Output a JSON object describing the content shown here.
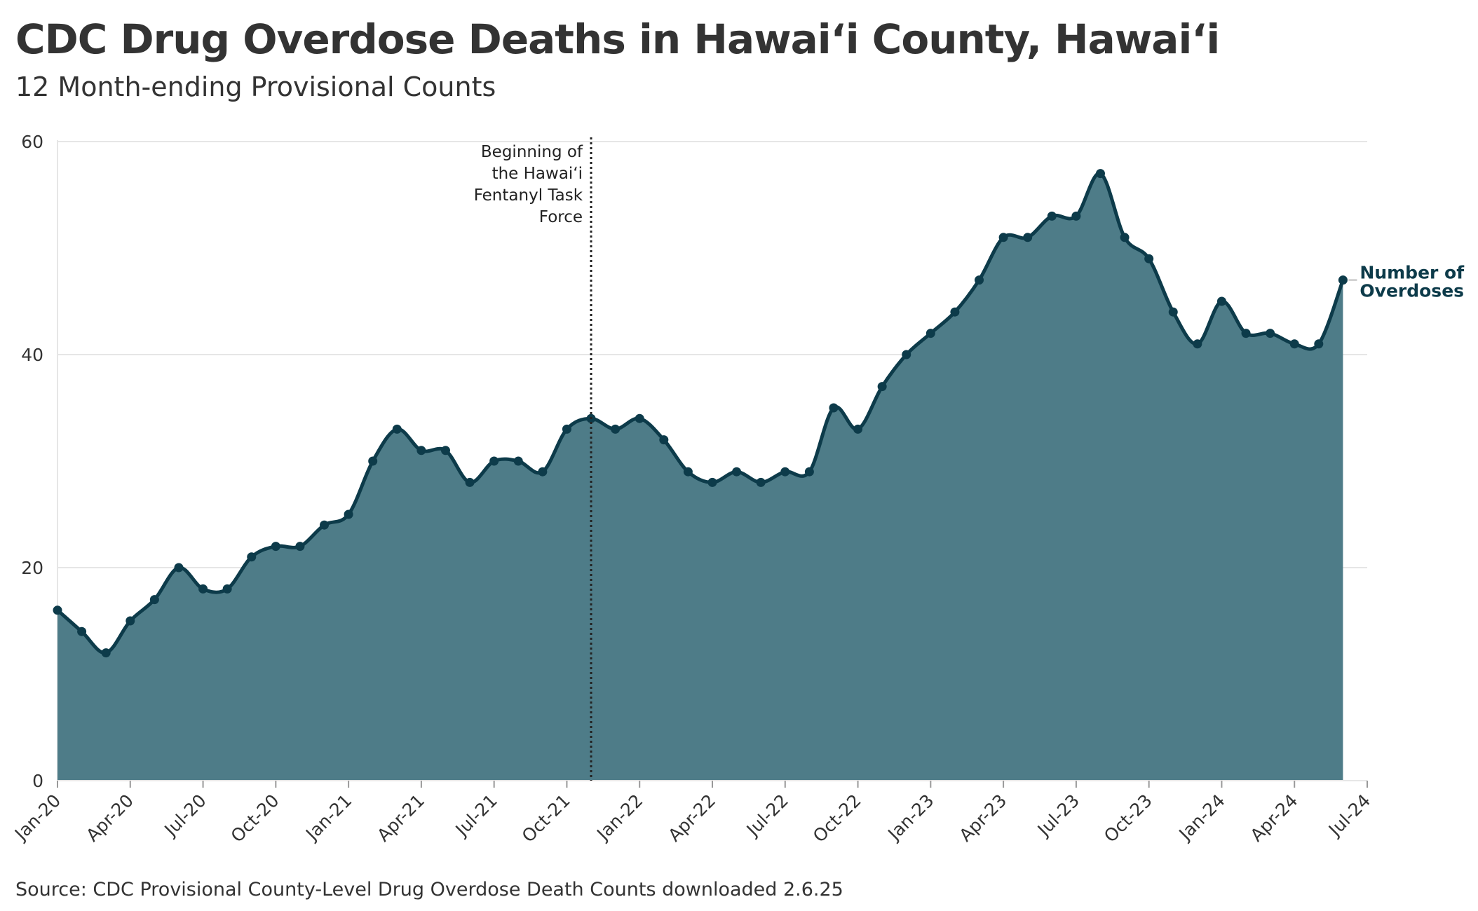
{
  "title": "CDC Drug Overdose Deaths in Hawaiʻi County, Hawaiʻi",
  "subtitle": "12 Month-ending Provisional Counts",
  "source": "Source: CDC Provisional County-Level Drug Overdose Death Counts downloaded 2.6.25",
  "colors": {
    "fill": "#4e7c88",
    "line": "#0d3b4a",
    "grid": "#e6e6e6",
    "text": "#333333"
  },
  "chart_data": {
    "type": "area",
    "title": "CDC Drug Overdose Deaths in Hawaiʻi County, Hawaiʻi",
    "subtitle": "12 Month-ending Provisional Counts",
    "xlabel": "",
    "ylabel": "",
    "ylim": [
      0,
      60
    ],
    "yticks": [
      0,
      20,
      40,
      60
    ],
    "grid": "horizontal",
    "x_tick_labels": [
      "Jan-20",
      "Apr-20",
      "Jul-20",
      "Oct-20",
      "Jan-21",
      "Apr-21",
      "Jul-21",
      "Oct-21",
      "Jan-22",
      "Apr-22",
      "Jul-22",
      "Oct-22",
      "Jan-23",
      "Apr-23",
      "Jul-23",
      "Oct-23",
      "Jan-24",
      "Apr-24",
      "Jul-24"
    ],
    "x_start": "Jan-20",
    "series": [
      {
        "name": "Number of Overdoses",
        "label_lines": [
          "Number of",
          "Overdoses"
        ],
        "values": [
          16,
          14,
          12,
          15,
          17,
          20,
          18,
          18,
          21,
          22,
          22,
          24,
          25,
          30,
          33,
          31,
          31,
          28,
          30,
          30,
          29,
          33,
          34,
          33,
          34,
          32,
          29,
          28,
          29,
          28,
          29,
          29,
          35,
          33,
          37,
          40,
          42,
          44,
          47,
          51,
          51,
          53,
          53,
          57,
          51,
          49,
          44,
          41,
          45,
          42,
          42,
          41,
          41,
          47
        ]
      }
    ],
    "annotations": [
      {
        "type": "vertical-line",
        "x": "Nov-21",
        "style": "dotted",
        "text_lines": [
          "Beginning of",
          "the Hawaiʻi",
          "Fentanyl Task",
          "Force"
        ]
      }
    ]
  }
}
